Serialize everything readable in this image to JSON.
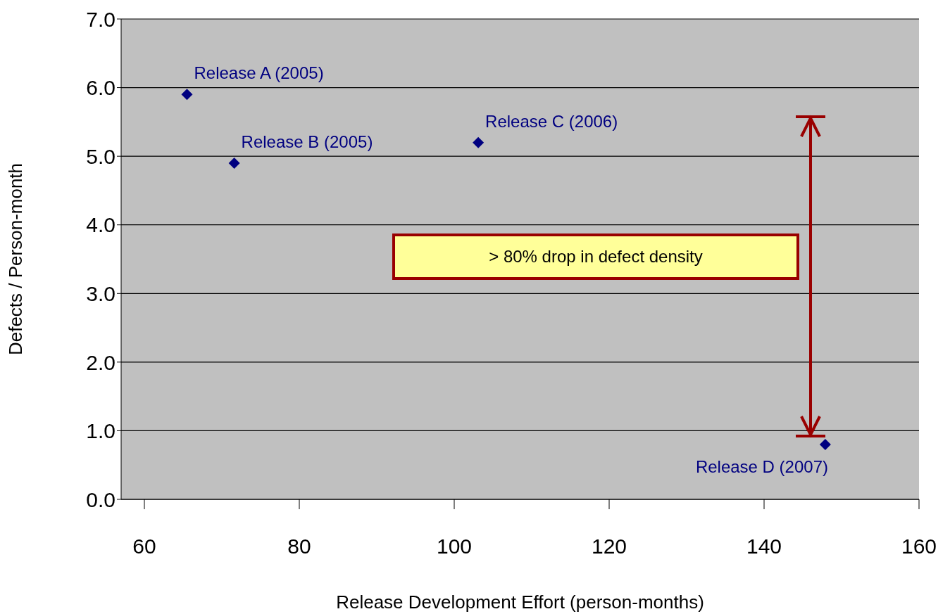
{
  "chart_data": {
    "type": "scatter",
    "xlabel": "Release Development Effort (person-months)",
    "ylabel": "Defects / Person-month",
    "x": [
      65.5,
      71.6,
      103.1,
      147.9
    ],
    "series": [
      {
        "color": "#000080",
        "values": [
          5.9,
          4.9,
          5.2,
          0.8
        ]
      }
    ],
    "marker": "diamond",
    "grid": "y",
    "legend": false,
    "xlim": [
      57,
      160
    ],
    "xticks": [
      60,
      80,
      100,
      120,
      140,
      160
    ],
    "ylim": [
      0,
      7
    ],
    "yticks": [
      {
        "value": 0,
        "label": "0.0"
      },
      {
        "value": 1,
        "label": "1.0"
      },
      {
        "value": 2,
        "label": "2.0"
      },
      {
        "value": 3,
        "label": "3.0"
      },
      {
        "value": 4,
        "label": "4.0"
      },
      {
        "value": 5,
        "label": "5.0"
      },
      {
        "value": 6,
        "label": "6.0"
      },
      {
        "value": 7,
        "label": "7.0"
      }
    ],
    "annotations": [
      {
        "text": "Release A (2005)",
        "x": 65.5,
        "y": 5.9
      },
      {
        "text": "Release B (2005)",
        "x": 71.6,
        "y": 4.9
      },
      {
        "text": "Release C (2006)",
        "x": 103.1,
        "y": 5.2
      },
      {
        "text": "Release D (2007)",
        "x": 147.9,
        "y": 0.8
      },
      "> 80% drop in defect density"
    ]
  }
}
